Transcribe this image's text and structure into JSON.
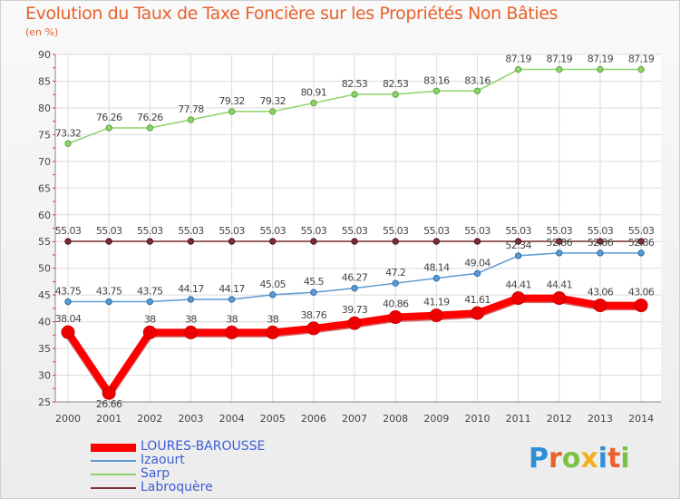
{
  "title": "Evolution du Taux de Taxe Foncière sur les Propriétés Non Bâties",
  "unit": "(en %)",
  "logo": {
    "text": "Proxiti"
  },
  "chart_data": {
    "type": "line",
    "title": "Evolution du Taux de Taxe Foncière sur les Propriétés Non Bâties",
    "ylabel": "(en %)",
    "xlabel": "",
    "categories": [
      "2000",
      "2001",
      "2002",
      "2003",
      "2004",
      "2005",
      "2006",
      "2007",
      "2008",
      "2009",
      "2010",
      "2011",
      "2012",
      "2013",
      "2014"
    ],
    "ylim": [
      25,
      90
    ],
    "yticks": [
      25,
      30,
      35,
      40,
      45,
      50,
      55,
      60,
      65,
      70,
      75,
      80,
      85,
      90
    ],
    "grid": true,
    "legend_position": "bottom-left",
    "series": [
      {
        "name": "LOURES-BAROUSSE",
        "color": "#ff0000",
        "values": [
          38.04,
          26.66,
          38,
          38,
          38,
          38,
          38.76,
          39.73,
          40.86,
          41.19,
          41.61,
          44.41,
          44.41,
          43.06,
          43.06
        ],
        "labels": [
          "38.04",
          "26.66",
          "38",
          "38",
          "38",
          "38",
          "38.76",
          "39.73",
          "40.86",
          "41.19",
          "41.61",
          "44.41",
          "44.41",
          "43.06",
          "43.06"
        ]
      },
      {
        "name": "Izaourt",
        "color": "#5b9ad1",
        "values": [
          43.75,
          43.75,
          43.75,
          44.17,
          44.17,
          45.05,
          45.5,
          46.27,
          47.2,
          48.14,
          49.04,
          52.34,
          52.86,
          52.86,
          52.86
        ],
        "labels": [
          "43.75",
          "43.75",
          "43.75",
          "44.17",
          "44.17",
          "45.05",
          "45.5",
          "46.27",
          "47.2",
          "48.14",
          "49.04",
          "52.34",
          "52.86",
          "52.86",
          "52.86"
        ]
      },
      {
        "name": "Sarp",
        "color": "#8fd16a",
        "values": [
          73.32,
          76.26,
          76.26,
          77.78,
          79.32,
          79.32,
          80.91,
          82.53,
          82.53,
          83.16,
          83.16,
          87.19,
          87.19,
          87.19,
          87.19
        ],
        "labels": [
          "73.32",
          "76.26",
          "76.26",
          "77.78",
          "79.32",
          "79.32",
          "80.91",
          "82.53",
          "82.53",
          "83.16",
          "83.16",
          "87.19",
          "87.19",
          "87.19",
          "87.19"
        ]
      },
      {
        "name": "Labroquère",
        "color": "#7a2e35",
        "values": [
          55.03,
          55.03,
          55.03,
          55.03,
          55.03,
          55.03,
          55.03,
          55.03,
          55.03,
          55.03,
          55.03,
          55.03,
          55.03,
          55.03,
          55.03
        ],
        "labels": [
          "55.03",
          "55.03",
          "55.03",
          "55.03",
          "55.03",
          "55.03",
          "55.03",
          "55.03",
          "55.03",
          "55.03",
          "55.03",
          "55.03",
          "55.03",
          "55.03",
          "55.03"
        ]
      }
    ]
  }
}
